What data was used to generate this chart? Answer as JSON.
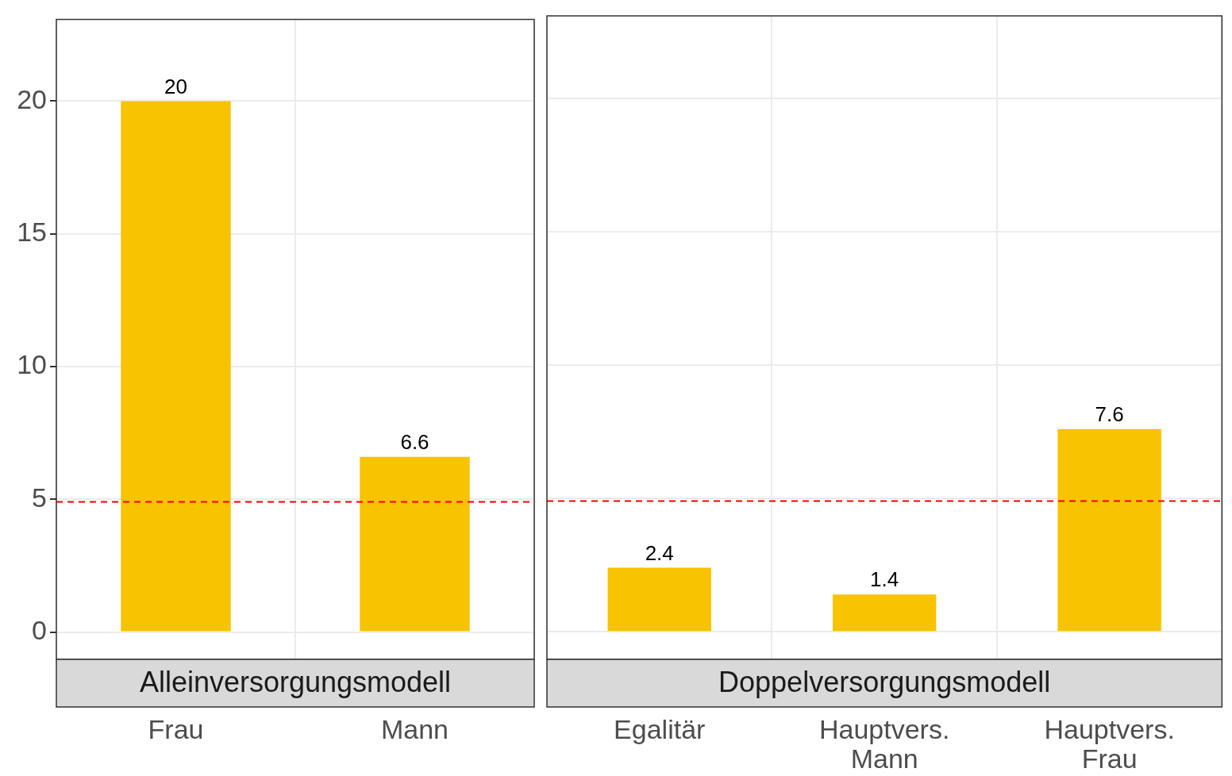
{
  "chart_data": [
    {
      "type": "bar",
      "title": "Alleinversorgungsmodell",
      "categories": [
        "Frau",
        "Mann"
      ],
      "values": [
        20,
        6.6
      ],
      "color": "#f8c300",
      "ylim": [
        -1.03,
        23.08
      ],
      "yticks": [
        0,
        5,
        10,
        15,
        20
      ],
      "grid": true,
      "data_labels": true,
      "ref_lines": [
        {
          "axis": "y",
          "value": 4.9,
          "color": "#ff0000",
          "line_style": "dashed"
        }
      ]
    },
    {
      "type": "bar",
      "title": "Doppelversorgungsmodell",
      "categories": [
        "Egalitär",
        "Hauptvers. Mann",
        "Hauptvers. Frau"
      ],
      "values": [
        2.4,
        1.4,
        7.6
      ],
      "color": "#f8c300",
      "ylim": [
        -1.03,
        23.08
      ],
      "yticks": [
        0,
        5,
        10,
        15,
        20
      ],
      "grid": true,
      "data_labels": true,
      "tick_labels": "x",
      "ref_lines": [
        {
          "axis": "y",
          "value": 4.9,
          "color": "#ff0000",
          "line_style": "dashed"
        }
      ]
    }
  ]
}
